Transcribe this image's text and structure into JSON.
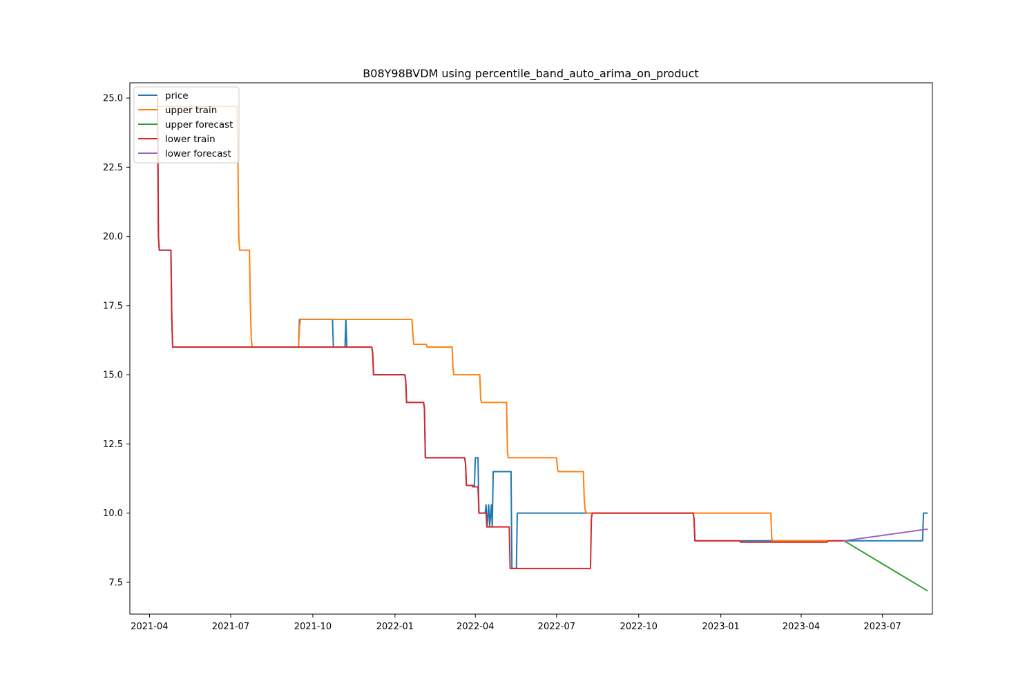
{
  "chart_data": {
    "type": "line",
    "title": "B08Y98BVDM using percentile_band_auto_arima_on_product",
    "xlabel": "",
    "ylabel": "",
    "xlim": [
      "2021-03-10",
      "2023-08-26"
    ],
    "ylim": [
      6.35,
      25.55
    ],
    "x_ticks": [
      "2021-04",
      "2021-07",
      "2021-10",
      "2022-01",
      "2022-04",
      "2022-07",
      "2022-10",
      "2023-01",
      "2023-04",
      "2023-07"
    ],
    "y_ticks": [
      "7.5",
      "10.0",
      "12.5",
      "15.0",
      "17.5",
      "20.0",
      "22.5",
      "25.0"
    ],
    "grid": false,
    "legend_position": "upper-left",
    "series": [
      {
        "name": "price",
        "color": "#1f77b4",
        "points": [
          [
            "2021-04-10",
            25.0
          ],
          [
            "2021-04-11",
            20.0
          ],
          [
            "2021-04-12",
            19.5
          ],
          [
            "2021-04-25",
            19.5
          ],
          [
            "2021-04-26",
            17.0
          ],
          [
            "2021-04-27",
            16.0
          ],
          [
            "2021-09-15",
            16.0
          ],
          [
            "2021-09-16",
            17.0
          ],
          [
            "2021-10-23",
            17.0
          ],
          [
            "2021-10-24",
            16.0
          ],
          [
            "2021-11-06",
            16.0
          ],
          [
            "2021-11-07",
            17.0
          ],
          [
            "2021-11-08",
            16.0
          ],
          [
            "2021-12-06",
            16.0
          ],
          [
            "2021-12-07",
            15.8
          ],
          [
            "2021-12-08",
            15.0
          ],
          [
            "2022-01-12",
            15.0
          ],
          [
            "2022-01-13",
            14.8
          ],
          [
            "2022-01-14",
            14.0
          ],
          [
            "2022-02-02",
            14.0
          ],
          [
            "2022-02-03",
            13.8
          ],
          [
            "2022-02-04",
            12.0
          ],
          [
            "2022-03-20",
            12.0
          ],
          [
            "2022-03-21",
            11.8
          ],
          [
            "2022-03-22",
            11.0
          ],
          [
            "2022-03-31",
            11.0
          ],
          [
            "2022-04-01",
            12.0
          ],
          [
            "2022-04-04",
            12.0
          ],
          [
            "2022-04-05",
            10.0
          ],
          [
            "2022-04-12",
            10.0
          ],
          [
            "2022-04-13",
            10.3
          ],
          [
            "2022-04-14",
            9.5
          ],
          [
            "2022-04-16",
            10.3
          ],
          [
            "2022-04-17",
            9.5
          ],
          [
            "2022-04-19",
            10.3
          ],
          [
            "2022-04-20",
            9.5
          ],
          [
            "2022-04-21",
            11.5
          ],
          [
            "2022-05-11",
            11.5
          ],
          [
            "2022-05-12",
            8.0
          ],
          [
            "2022-05-17",
            8.0
          ],
          [
            "2022-05-18",
            10.0
          ],
          [
            "2022-12-01",
            10.0
          ],
          [
            "2022-12-02",
            9.8
          ],
          [
            "2022-12-03",
            9.0
          ],
          [
            "2023-08-15",
            9.0
          ],
          [
            "2023-08-16",
            10.0
          ],
          [
            "2023-08-20",
            10.0
          ]
        ]
      },
      {
        "name": "upper train",
        "color": "#ff7f0e",
        "points": [
          [
            "2021-04-10",
            24.7
          ],
          [
            "2021-07-08",
            24.7
          ],
          [
            "2021-07-09",
            23.0
          ],
          [
            "2021-07-10",
            20.0
          ],
          [
            "2021-07-11",
            19.5
          ],
          [
            "2021-07-22",
            19.5
          ],
          [
            "2021-07-23",
            17.5
          ],
          [
            "2021-07-24",
            16.3
          ],
          [
            "2021-07-25",
            16.0
          ],
          [
            "2021-09-15",
            16.0
          ],
          [
            "2021-09-16",
            16.7
          ],
          [
            "2021-09-17",
            17.0
          ],
          [
            "2022-01-20",
            17.0
          ],
          [
            "2022-01-21",
            16.5
          ],
          [
            "2022-01-22",
            16.1
          ],
          [
            "2022-02-05",
            16.1
          ],
          [
            "2022-02-06",
            16.0
          ],
          [
            "2022-03-06",
            16.0
          ],
          [
            "2022-03-07",
            15.2
          ],
          [
            "2022-03-08",
            15.0
          ],
          [
            "2022-04-06",
            15.0
          ],
          [
            "2022-04-07",
            14.1
          ],
          [
            "2022-04-08",
            14.0
          ],
          [
            "2022-05-06",
            14.0
          ],
          [
            "2022-05-07",
            12.2
          ],
          [
            "2022-05-08",
            12.0
          ],
          [
            "2022-07-01",
            12.0
          ],
          [
            "2022-07-02",
            11.6
          ],
          [
            "2022-07-03",
            11.5
          ],
          [
            "2022-07-31",
            11.5
          ],
          [
            "2022-08-01",
            10.5
          ],
          [
            "2022-08-02",
            10.1
          ],
          [
            "2022-08-04",
            10.0
          ],
          [
            "2023-02-26",
            10.0
          ],
          [
            "2023-02-27",
            9.1
          ],
          [
            "2023-02-28",
            9.0
          ],
          [
            "2023-05-19",
            9.0
          ]
        ]
      },
      {
        "name": "upper forecast",
        "color": "#2ca02c",
        "points": [
          [
            "2023-05-19",
            9.0
          ],
          [
            "2023-08-20",
            7.2
          ]
        ]
      },
      {
        "name": "lower train",
        "color": "#d62728",
        "points": [
          [
            "2021-04-10",
            25.0
          ],
          [
            "2021-04-11",
            20.0
          ],
          [
            "2021-04-12",
            19.5
          ],
          [
            "2021-04-25",
            19.5
          ],
          [
            "2021-04-26",
            17.0
          ],
          [
            "2021-04-27",
            16.0
          ],
          [
            "2021-12-06",
            16.0
          ],
          [
            "2021-12-07",
            15.8
          ],
          [
            "2021-12-08",
            15.0
          ],
          [
            "2022-01-12",
            15.0
          ],
          [
            "2022-01-13",
            14.8
          ],
          [
            "2022-01-14",
            14.0
          ],
          [
            "2022-02-02",
            14.0
          ],
          [
            "2022-02-03",
            13.8
          ],
          [
            "2022-02-04",
            12.0
          ],
          [
            "2022-03-20",
            12.0
          ],
          [
            "2022-03-21",
            11.8
          ],
          [
            "2022-03-22",
            11.0
          ],
          [
            "2022-03-28",
            11.0
          ],
          [
            "2022-03-29",
            10.95
          ],
          [
            "2022-04-04",
            10.95
          ],
          [
            "2022-04-05",
            10.0
          ],
          [
            "2022-04-13",
            10.0
          ],
          [
            "2022-04-14",
            9.5
          ],
          [
            "2022-05-09",
            9.5
          ],
          [
            "2022-05-10",
            8.0
          ],
          [
            "2022-08-08",
            8.0
          ],
          [
            "2022-08-09",
            9.8
          ],
          [
            "2022-08-10",
            10.0
          ],
          [
            "2022-12-01",
            10.0
          ],
          [
            "2022-12-02",
            9.8
          ],
          [
            "2022-12-03",
            9.0
          ],
          [
            "2023-01-22",
            9.0
          ],
          [
            "2023-01-23",
            8.95
          ],
          [
            "2023-04-30",
            8.95
          ],
          [
            "2023-05-01",
            9.0
          ],
          [
            "2023-05-19",
            9.0
          ]
        ]
      },
      {
        "name": "lower forecast",
        "color": "#9467bd",
        "points": [
          [
            "2023-05-19",
            9.0
          ],
          [
            "2023-08-20",
            9.42
          ]
        ]
      }
    ]
  }
}
